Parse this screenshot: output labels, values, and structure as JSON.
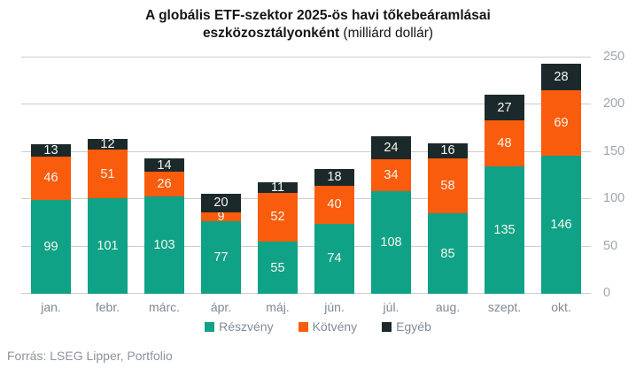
{
  "title": {
    "line1": "A globális ETF-szektor 2025-ös havi tőkebeáramlásai",
    "line2_bold": "eszközosztályonként",
    "line2_regular": " (milliárd dollár)"
  },
  "footer": {
    "source": "Forrás: LSEG Lipper, Portfolio"
  },
  "colors": {
    "equity": "#0fa286",
    "bond": "#f95c0c",
    "other": "#1b292b",
    "gridline": "#cccccc",
    "value_label": "#f8f6ee",
    "axis_label": "#9ea6ae"
  },
  "chart_data": {
    "type": "bar",
    "stacked": true,
    "title": "A globális ETF-szektor 2025-ös havi tőkebeáramlásai eszközosztályonként (milliárd dollár)",
    "categories": [
      "jan.",
      "febr.",
      "márc.",
      "ápr.",
      "máj.",
      "jún.",
      "júl.",
      "aug.",
      "szept.",
      "okt."
    ],
    "series": [
      {
        "name": "Részvény",
        "color": "#0fa286",
        "values": [
          99,
          101,
          103,
          77,
          55,
          74,
          108,
          85,
          135,
          146
        ]
      },
      {
        "name": "Kötvény",
        "color": "#f95c0c",
        "values": [
          46,
          51,
          26,
          9,
          52,
          40,
          34,
          58,
          48,
          69
        ]
      },
      {
        "name": "Egyéb",
        "color": "#1b292b",
        "values": [
          13,
          12,
          14,
          20,
          11,
          18,
          24,
          16,
          27,
          28
        ]
      }
    ],
    "ylim": [
      0,
      250
    ],
    "yticks": [
      0,
      50,
      100,
      150,
      200,
      250
    ],
    "grid": "horizontal",
    "legend_position": "bottom",
    "value_labels": true,
    "y_axis_side": "right"
  }
}
